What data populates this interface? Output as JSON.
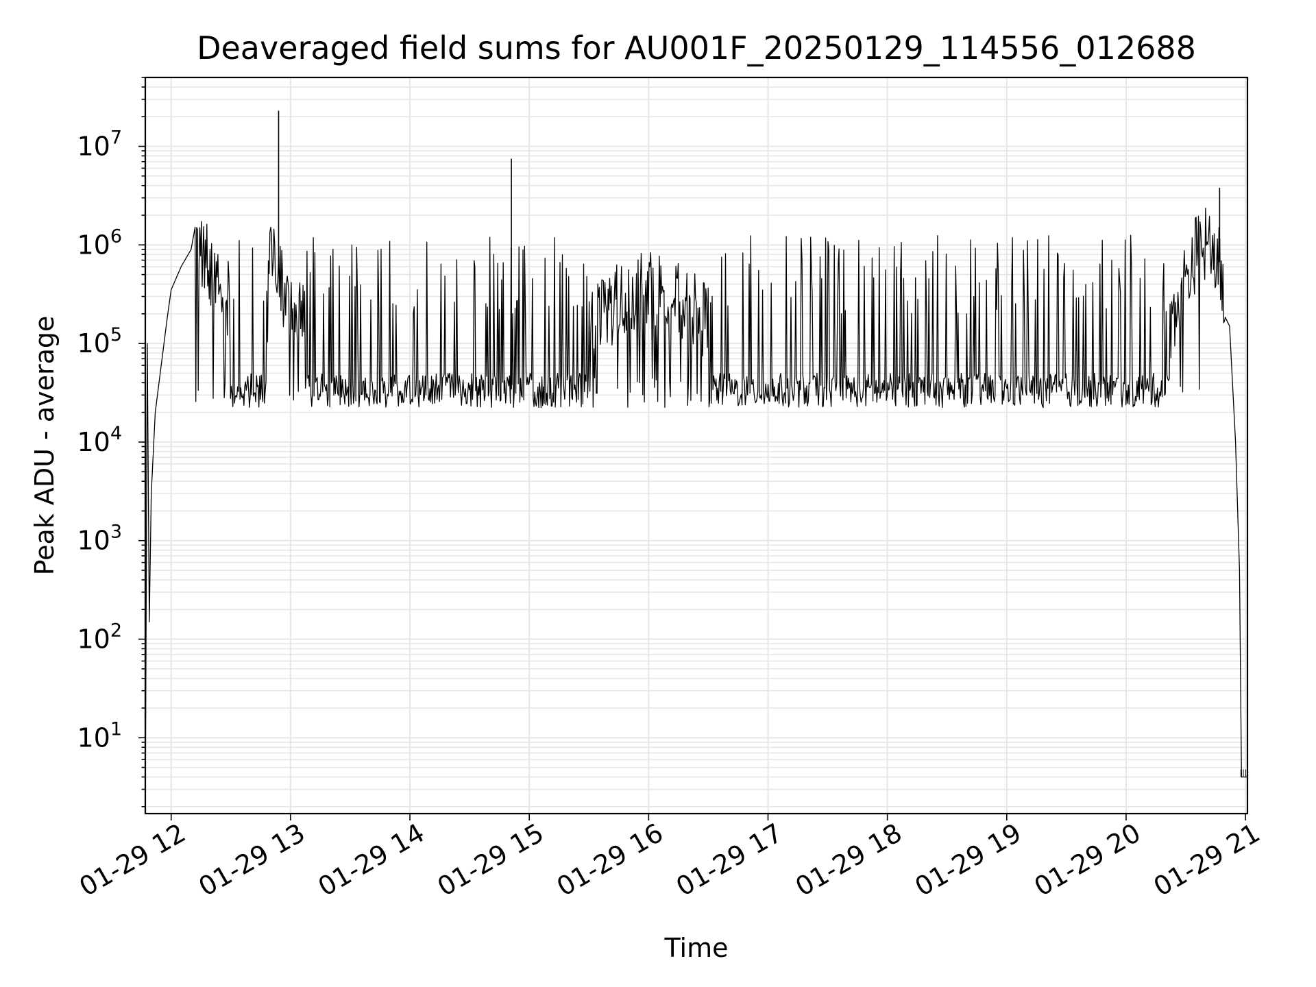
{
  "chart_data": {
    "type": "line",
    "title": "Deaveraged field sums for AU001F_20250129_114556_012688",
    "xlabel": "Time",
    "ylabel": "Peak ADU - average",
    "yscale": "log",
    "ylim": [
      1.7,
      50000000
    ],
    "xlim": [
      "2025-01-29 11:47",
      "2025-01-29 21:01"
    ],
    "grid": true,
    "line_color": "#000000",
    "grid_color": "#e6e6e6",
    "x_ticks": [
      {
        "label": "01-29 12",
        "t": "2025-01-29 12:00"
      },
      {
        "label": "01-29 13",
        "t": "2025-01-29 13:00"
      },
      {
        "label": "01-29 14",
        "t": "2025-01-29 14:00"
      },
      {
        "label": "01-29 15",
        "t": "2025-01-29 15:00"
      },
      {
        "label": "01-29 16",
        "t": "2025-01-29 16:00"
      },
      {
        "label": "01-29 17",
        "t": "2025-01-29 17:00"
      },
      {
        "label": "01-29 18",
        "t": "2025-01-29 18:00"
      },
      {
        "label": "01-29 19",
        "t": "2025-01-29 19:00"
      },
      {
        "label": "01-29 20",
        "t": "2025-01-29 20:00"
      },
      {
        "label": "01-29 21",
        "t": "2025-01-29 21:00"
      }
    ],
    "y_ticks": [
      {
        "base": "10",
        "exp": "1",
        "value": 10
      },
      {
        "base": "10",
        "exp": "2",
        "value": 100
      },
      {
        "base": "10",
        "exp": "3",
        "value": 1000
      },
      {
        "base": "10",
        "exp": "4",
        "value": 10000
      },
      {
        "base": "10",
        "exp": "5",
        "value": 100000
      },
      {
        "base": "10",
        "exp": "6",
        "value": 1000000
      },
      {
        "base": "10",
        "exp": "7",
        "value": 10000000
      }
    ],
    "series": [
      {
        "x": [
          "2025-01-29 11:47",
          "2025-01-29 11:48",
          "2025-01-29 11:49",
          "2025-01-29 11:50",
          "2025-01-29 11:52",
          "2025-01-29 11:55",
          "2025-01-29 11:58",
          "2025-01-29 12:00",
          "2025-01-29 12:05",
          "2025-01-29 12:10",
          "2025-01-29 12:14",
          "2025-01-29 12:20",
          "2025-01-29 12:25",
          "2025-01-29 12:30",
          "2025-01-29 12:35",
          "2025-01-29 12:40",
          "2025-01-29 12:45",
          "2025-01-29 12:50",
          "2025-01-29 12:55",
          "2025-01-29 13:00",
          "2025-01-29 13:20",
          "2025-01-29 13:40",
          "2025-01-29 14:00",
          "2025-01-29 14:20",
          "2025-01-29 14:37",
          "2025-01-29 14:52",
          "2025-01-29 15:00",
          "2025-01-29 15:30",
          "2025-01-29 16:00",
          "2025-01-29 16:30",
          "2025-01-29 17:00",
          "2025-01-29 17:30",
          "2025-01-29 18:00",
          "2025-01-29 18:30",
          "2025-01-29 19:00",
          "2025-01-29 19:30",
          "2025-01-29 20:00",
          "2025-01-29 20:15",
          "2025-01-29 20:25",
          "2025-01-29 20:35",
          "2025-01-29 20:41",
          "2025-01-29 20:46",
          "2025-01-29 20:52",
          "2025-01-29 20:55",
          "2025-01-29 20:57",
          "2025-01-29 20:58",
          "2025-01-29 21:01"
        ],
        "y": [
          1.7,
          100000,
          150,
          3000,
          20000,
          60000,
          180000,
          350000,
          600000,
          900000,
          950000,
          700000,
          400000,
          150000,
          60000,
          30000,
          28000,
          900000,
          500000,
          300000,
          100000,
          40000,
          30000,
          28000,
          24000,
          35000,
          60000,
          200000,
          500000,
          200000,
          80000,
          50000,
          40000,
          35000,
          30000,
          30000,
          30000,
          60000,
          300000,
          1000000,
          1200000,
          900000,
          150000,
          10000,
          500,
          4,
          4
        ],
        "spikes": [
          {
            "x": "2025-01-29 12:54",
            "y": 23000000
          },
          {
            "x": "2025-01-29 14:51",
            "y": 7500000
          },
          {
            "x": "2025-01-29 20:47",
            "y": 3800000
          }
        ]
      }
    ]
  }
}
